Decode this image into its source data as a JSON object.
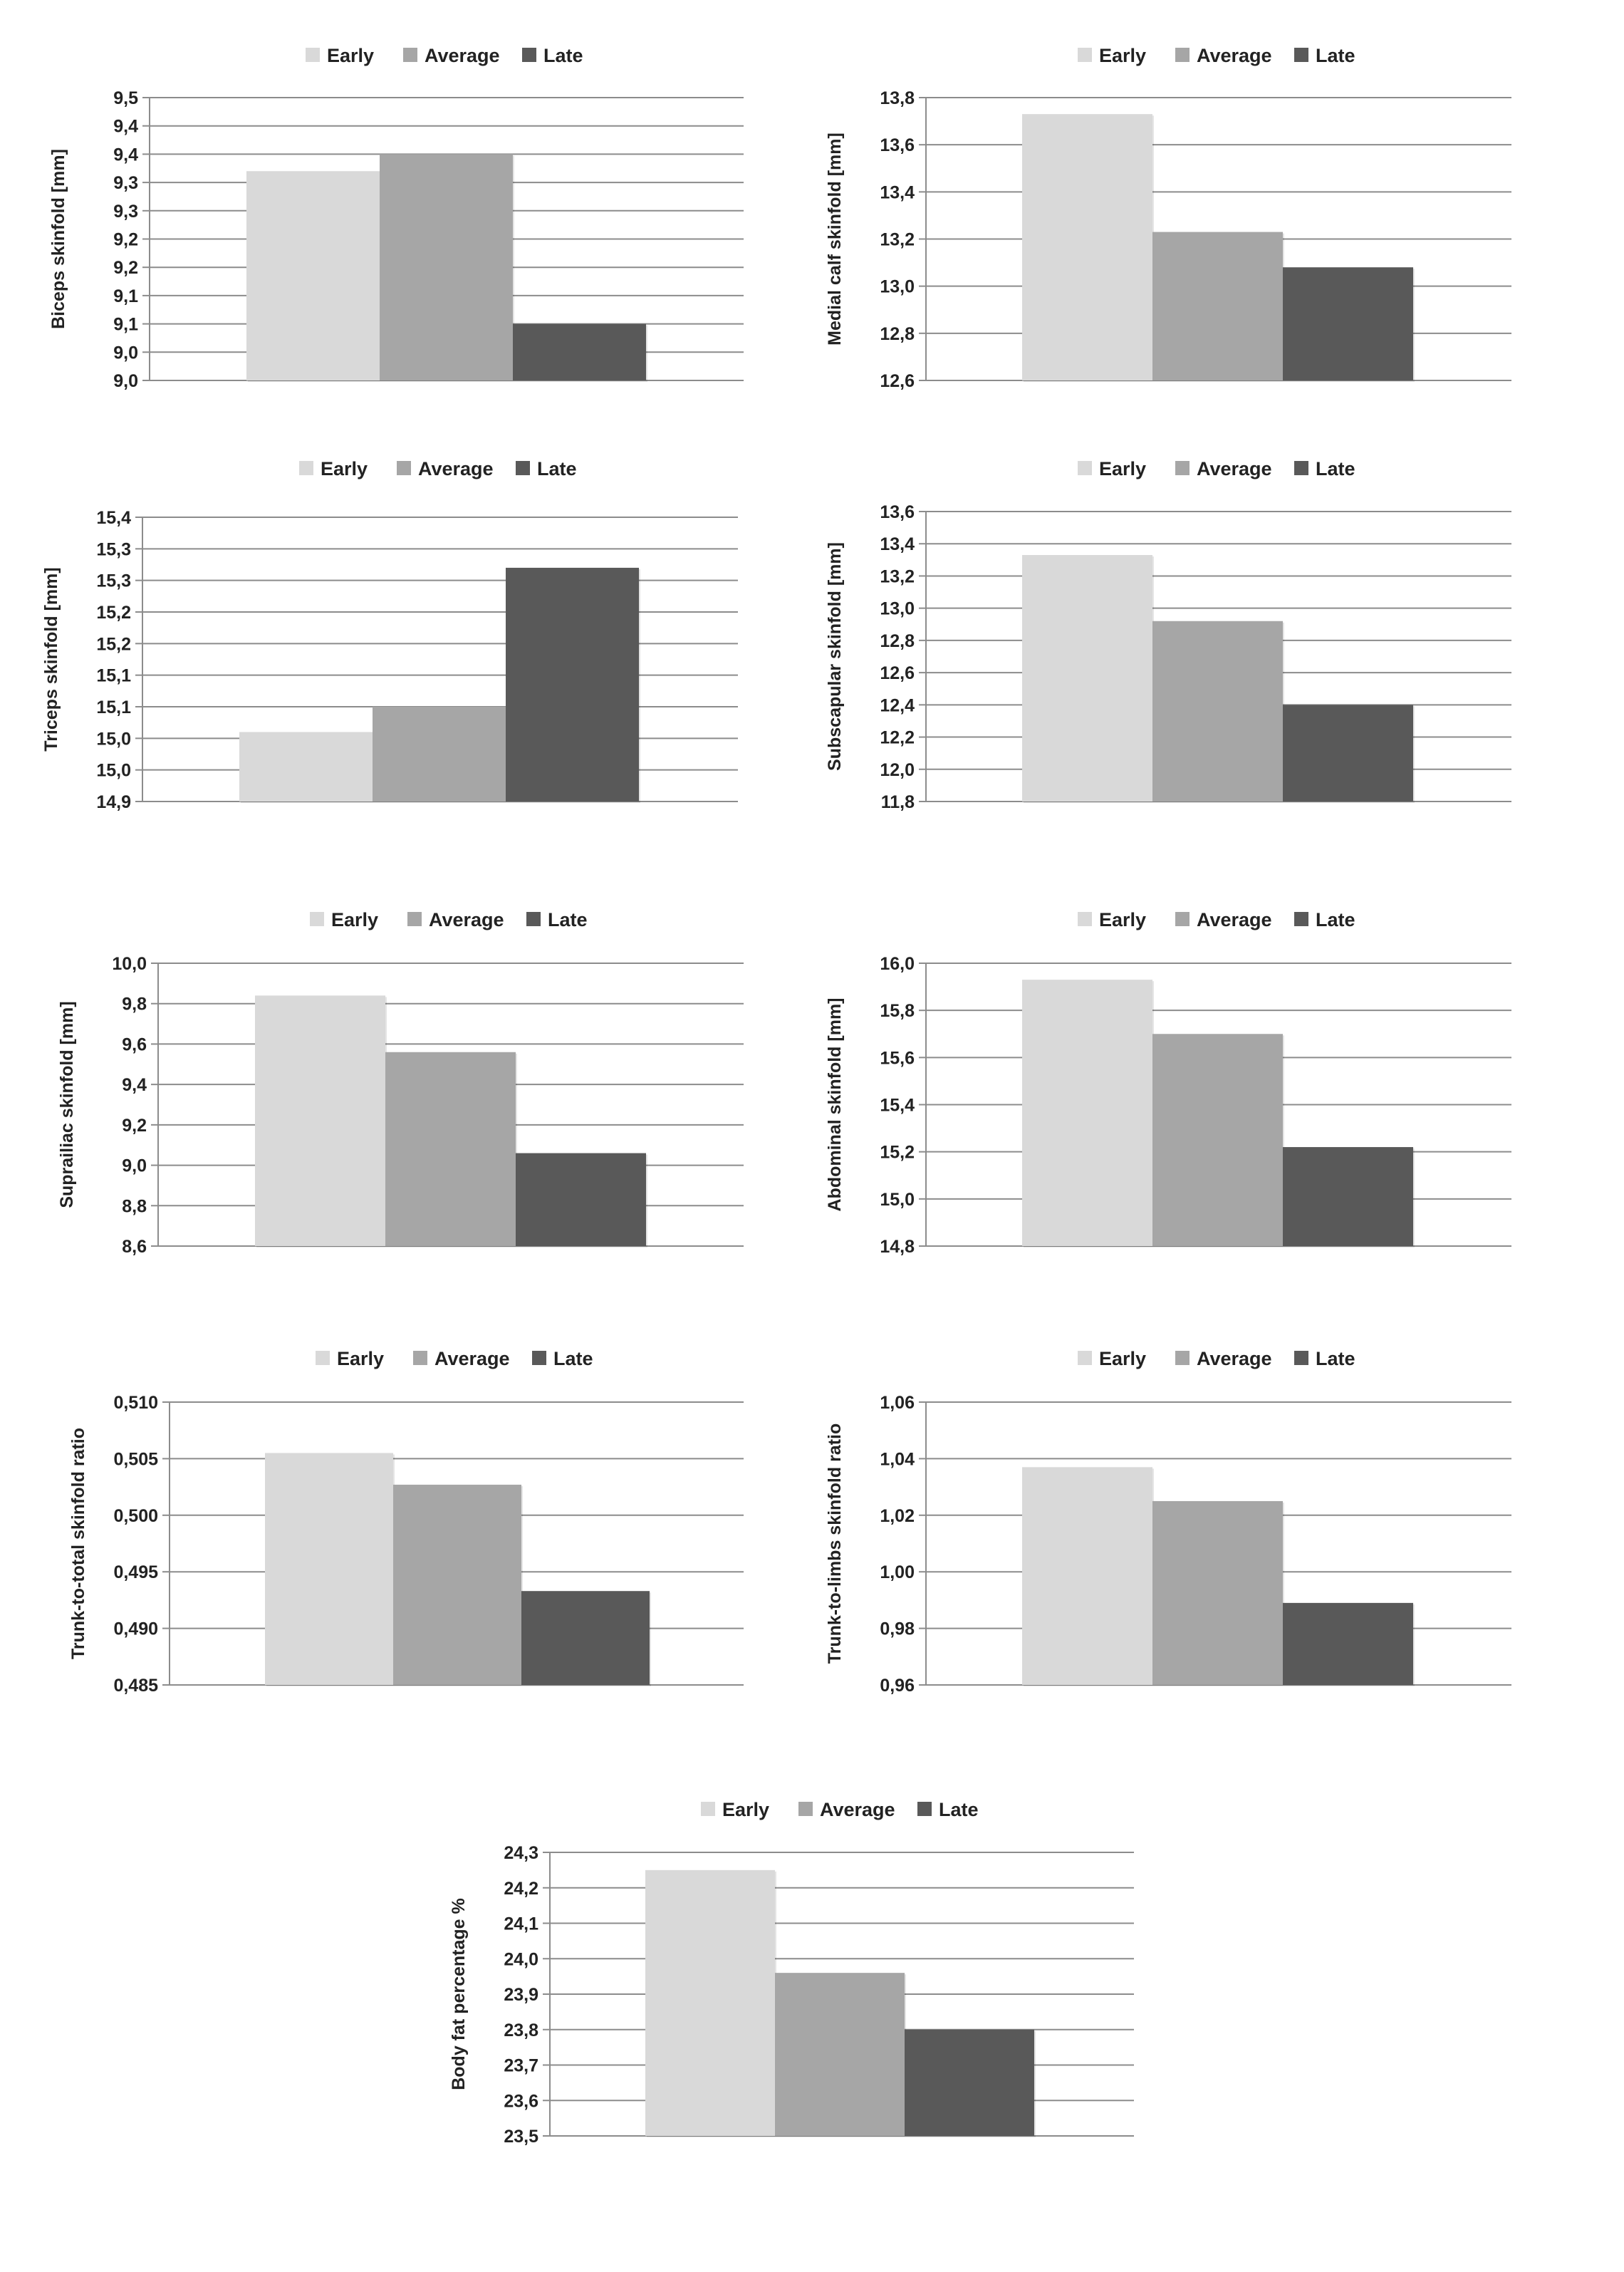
{
  "legend": {
    "entries": [
      {
        "name": "Early",
        "color": "#d9d9d9"
      },
      {
        "name": "Average",
        "color": "#a6a6a6"
      },
      {
        "name": "Late",
        "color": "#595959"
      }
    ]
  },
  "chart_data": [
    {
      "type": "bar",
      "categories": [
        ""
      ],
      "series": [
        {
          "name": "Early",
          "values": [
            9.37
          ]
        },
        {
          "name": "Average",
          "values": [
            9.4
          ]
        },
        {
          "name": "Late",
          "values": [
            9.1
          ]
        }
      ],
      "xlabel": "",
      "ylabel": "Biceps skinfold [mm]",
      "ylim": [
        9.0,
        9.5
      ],
      "yticks": [
        "9,5",
        "9,4",
        "9,4",
        "9,3",
        "9,3",
        "9,2",
        "9,2",
        "9,1",
        "9,1",
        "9,0",
        "9,0"
      ],
      "grid": true,
      "legend_position": "top"
    },
    {
      "type": "bar",
      "categories": [
        ""
      ],
      "series": [
        {
          "name": "Early",
          "values": [
            13.73
          ]
        },
        {
          "name": "Average",
          "values": [
            13.23
          ]
        },
        {
          "name": "Late",
          "values": [
            13.08
          ]
        }
      ],
      "xlabel": "",
      "ylabel": "Medial calf skinfold [mm]",
      "ylim": [
        12.6,
        13.8
      ],
      "yticks": [
        "13,8",
        "13,6",
        "13,4",
        "13,2",
        "13,0",
        "12,8",
        "12,6"
      ],
      "grid": true,
      "legend_position": "top"
    },
    {
      "type": "bar",
      "categories": [
        ""
      ],
      "series": [
        {
          "name": "Early",
          "values": [
            15.06
          ]
        },
        {
          "name": "Average",
          "values": [
            15.1
          ]
        },
        {
          "name": "Late",
          "values": [
            15.32
          ]
        }
      ],
      "xlabel": "",
      "ylabel": "Triceps skinfold [mm]",
      "ylim": [
        14.95,
        15.4
      ],
      "yticks": [
        "15,4",
        "15,3",
        "15,3",
        "15,2",
        "15,2",
        "15,1",
        "15,1",
        "15,0",
        "15,0",
        "14,9"
      ],
      "grid": true,
      "legend_position": "top"
    },
    {
      "type": "bar",
      "categories": [
        ""
      ],
      "series": [
        {
          "name": "Early",
          "values": [
            13.33
          ]
        },
        {
          "name": "Average",
          "values": [
            12.92
          ]
        },
        {
          "name": "Late",
          "values": [
            12.4
          ]
        }
      ],
      "xlabel": "",
      "ylabel": "Subscapular skinfold [mm]",
      "ylim": [
        11.8,
        13.6
      ],
      "yticks": [
        "13,6",
        "13,4",
        "13,2",
        "13,0",
        "12,8",
        "12,6",
        "12,4",
        "12,2",
        "12,0",
        "11,8"
      ],
      "grid": true,
      "legend_position": "top"
    },
    {
      "type": "bar",
      "categories": [
        ""
      ],
      "series": [
        {
          "name": "Early",
          "values": [
            9.84
          ]
        },
        {
          "name": "Average",
          "values": [
            9.56
          ]
        },
        {
          "name": "Late",
          "values": [
            9.06
          ]
        }
      ],
      "xlabel": "",
      "ylabel": "Suprailiac skinfold [mm]",
      "ylim": [
        8.6,
        10.0
      ],
      "yticks": [
        "10,0",
        "9,8",
        "9,6",
        "9,4",
        "9,2",
        "9,0",
        "8,8",
        "8,6"
      ],
      "grid": true,
      "legend_position": "top"
    },
    {
      "type": "bar",
      "categories": [
        ""
      ],
      "series": [
        {
          "name": "Early",
          "values": [
            15.93
          ]
        },
        {
          "name": "Average",
          "values": [
            15.7
          ]
        },
        {
          "name": "Late",
          "values": [
            15.22
          ]
        }
      ],
      "xlabel": "",
      "ylabel": "Abdominal skinfold [mm]",
      "ylim": [
        14.8,
        16.0
      ],
      "yticks": [
        "16,0",
        "15,8",
        "15,6",
        "15,4",
        "15,2",
        "15,0",
        "14,8"
      ],
      "grid": true,
      "legend_position": "top"
    },
    {
      "type": "bar",
      "categories": [
        ""
      ],
      "series": [
        {
          "name": "Early",
          "values": [
            0.5055
          ]
        },
        {
          "name": "Average",
          "values": [
            0.5027
          ]
        },
        {
          "name": "Late",
          "values": [
            0.4933
          ]
        }
      ],
      "xlabel": "",
      "ylabel": "Trunk-to-total skinfold ratio",
      "ylim": [
        0.485,
        0.51
      ],
      "yticks": [
        "0,510",
        "0,505",
        "0,500",
        "0,495",
        "0,490",
        "0,485"
      ],
      "grid": true,
      "legend_position": "top"
    },
    {
      "type": "bar",
      "categories": [
        ""
      ],
      "series": [
        {
          "name": "Early",
          "values": [
            1.037
          ]
        },
        {
          "name": "Average",
          "values": [
            1.025
          ]
        },
        {
          "name": "Late",
          "values": [
            0.989
          ]
        }
      ],
      "xlabel": "",
      "ylabel": "Trunk-to-limbs skinfold ratio",
      "ylim": [
        0.96,
        1.06
      ],
      "yticks": [
        "1,06",
        "1,04",
        "1,02",
        "1,00",
        "0,98",
        "0,96"
      ],
      "grid": true,
      "legend_position": "top"
    },
    {
      "type": "bar",
      "categories": [
        ""
      ],
      "series": [
        {
          "name": "Early",
          "values": [
            24.25
          ]
        },
        {
          "name": "Average",
          "values": [
            23.96
          ]
        },
        {
          "name": "Late",
          "values": [
            23.8
          ]
        }
      ],
      "xlabel": "",
      "ylabel": "Body fat percentage %",
      "ylim": [
        23.5,
        24.3
      ],
      "yticks": [
        "24,3",
        "24,2",
        "24,1",
        "24,0",
        "23,9",
        "23,8",
        "23,7",
        "23,6",
        "23,5"
      ],
      "grid": true,
      "legend_position": "top"
    }
  ]
}
